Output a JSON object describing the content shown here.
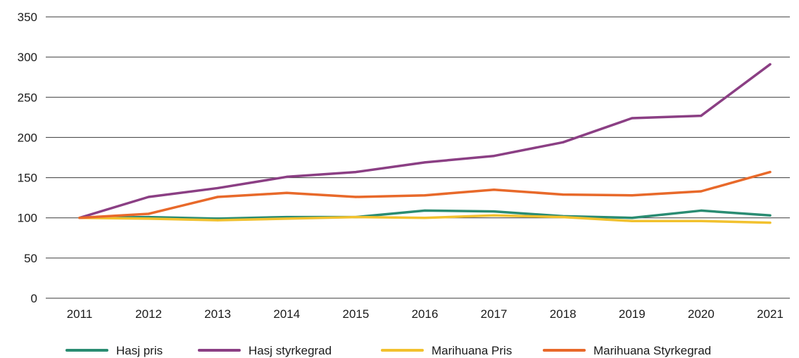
{
  "chart_data": {
    "type": "line",
    "title": "",
    "xlabel": "",
    "ylabel": "",
    "ylim": [
      0,
      350
    ],
    "yticks": [
      0,
      50,
      100,
      150,
      200,
      250,
      300,
      350
    ],
    "grid": true,
    "legend_position": "bottom",
    "categories": [
      "2011",
      "2012",
      "2013",
      "2014",
      "2015",
      "2016",
      "2017",
      "2018",
      "2019",
      "2020",
      "2021"
    ],
    "series": [
      {
        "name": "Hasj pris",
        "color": "#2a8c72",
        "values": [
          100,
          101,
          99,
          101,
          101,
          109,
          108,
          102,
          100,
          109,
          103
        ]
      },
      {
        "name": "Hasj styrkegrad",
        "color": "#8b3f84",
        "values": [
          100,
          126,
          137,
          151,
          157,
          169,
          177,
          194,
          224,
          227,
          291
        ]
      },
      {
        "name": "Marihuana Pris",
        "color": "#f2c12e",
        "values": [
          100,
          99,
          97,
          99,
          101,
          100,
          103,
          101,
          96,
          96,
          94
        ]
      },
      {
        "name": "Marihuana Styrkegrad",
        "color": "#e8692a",
        "values": [
          100,
          105,
          126,
          131,
          126,
          128,
          135,
          129,
          128,
          133,
          157
        ]
      }
    ]
  }
}
